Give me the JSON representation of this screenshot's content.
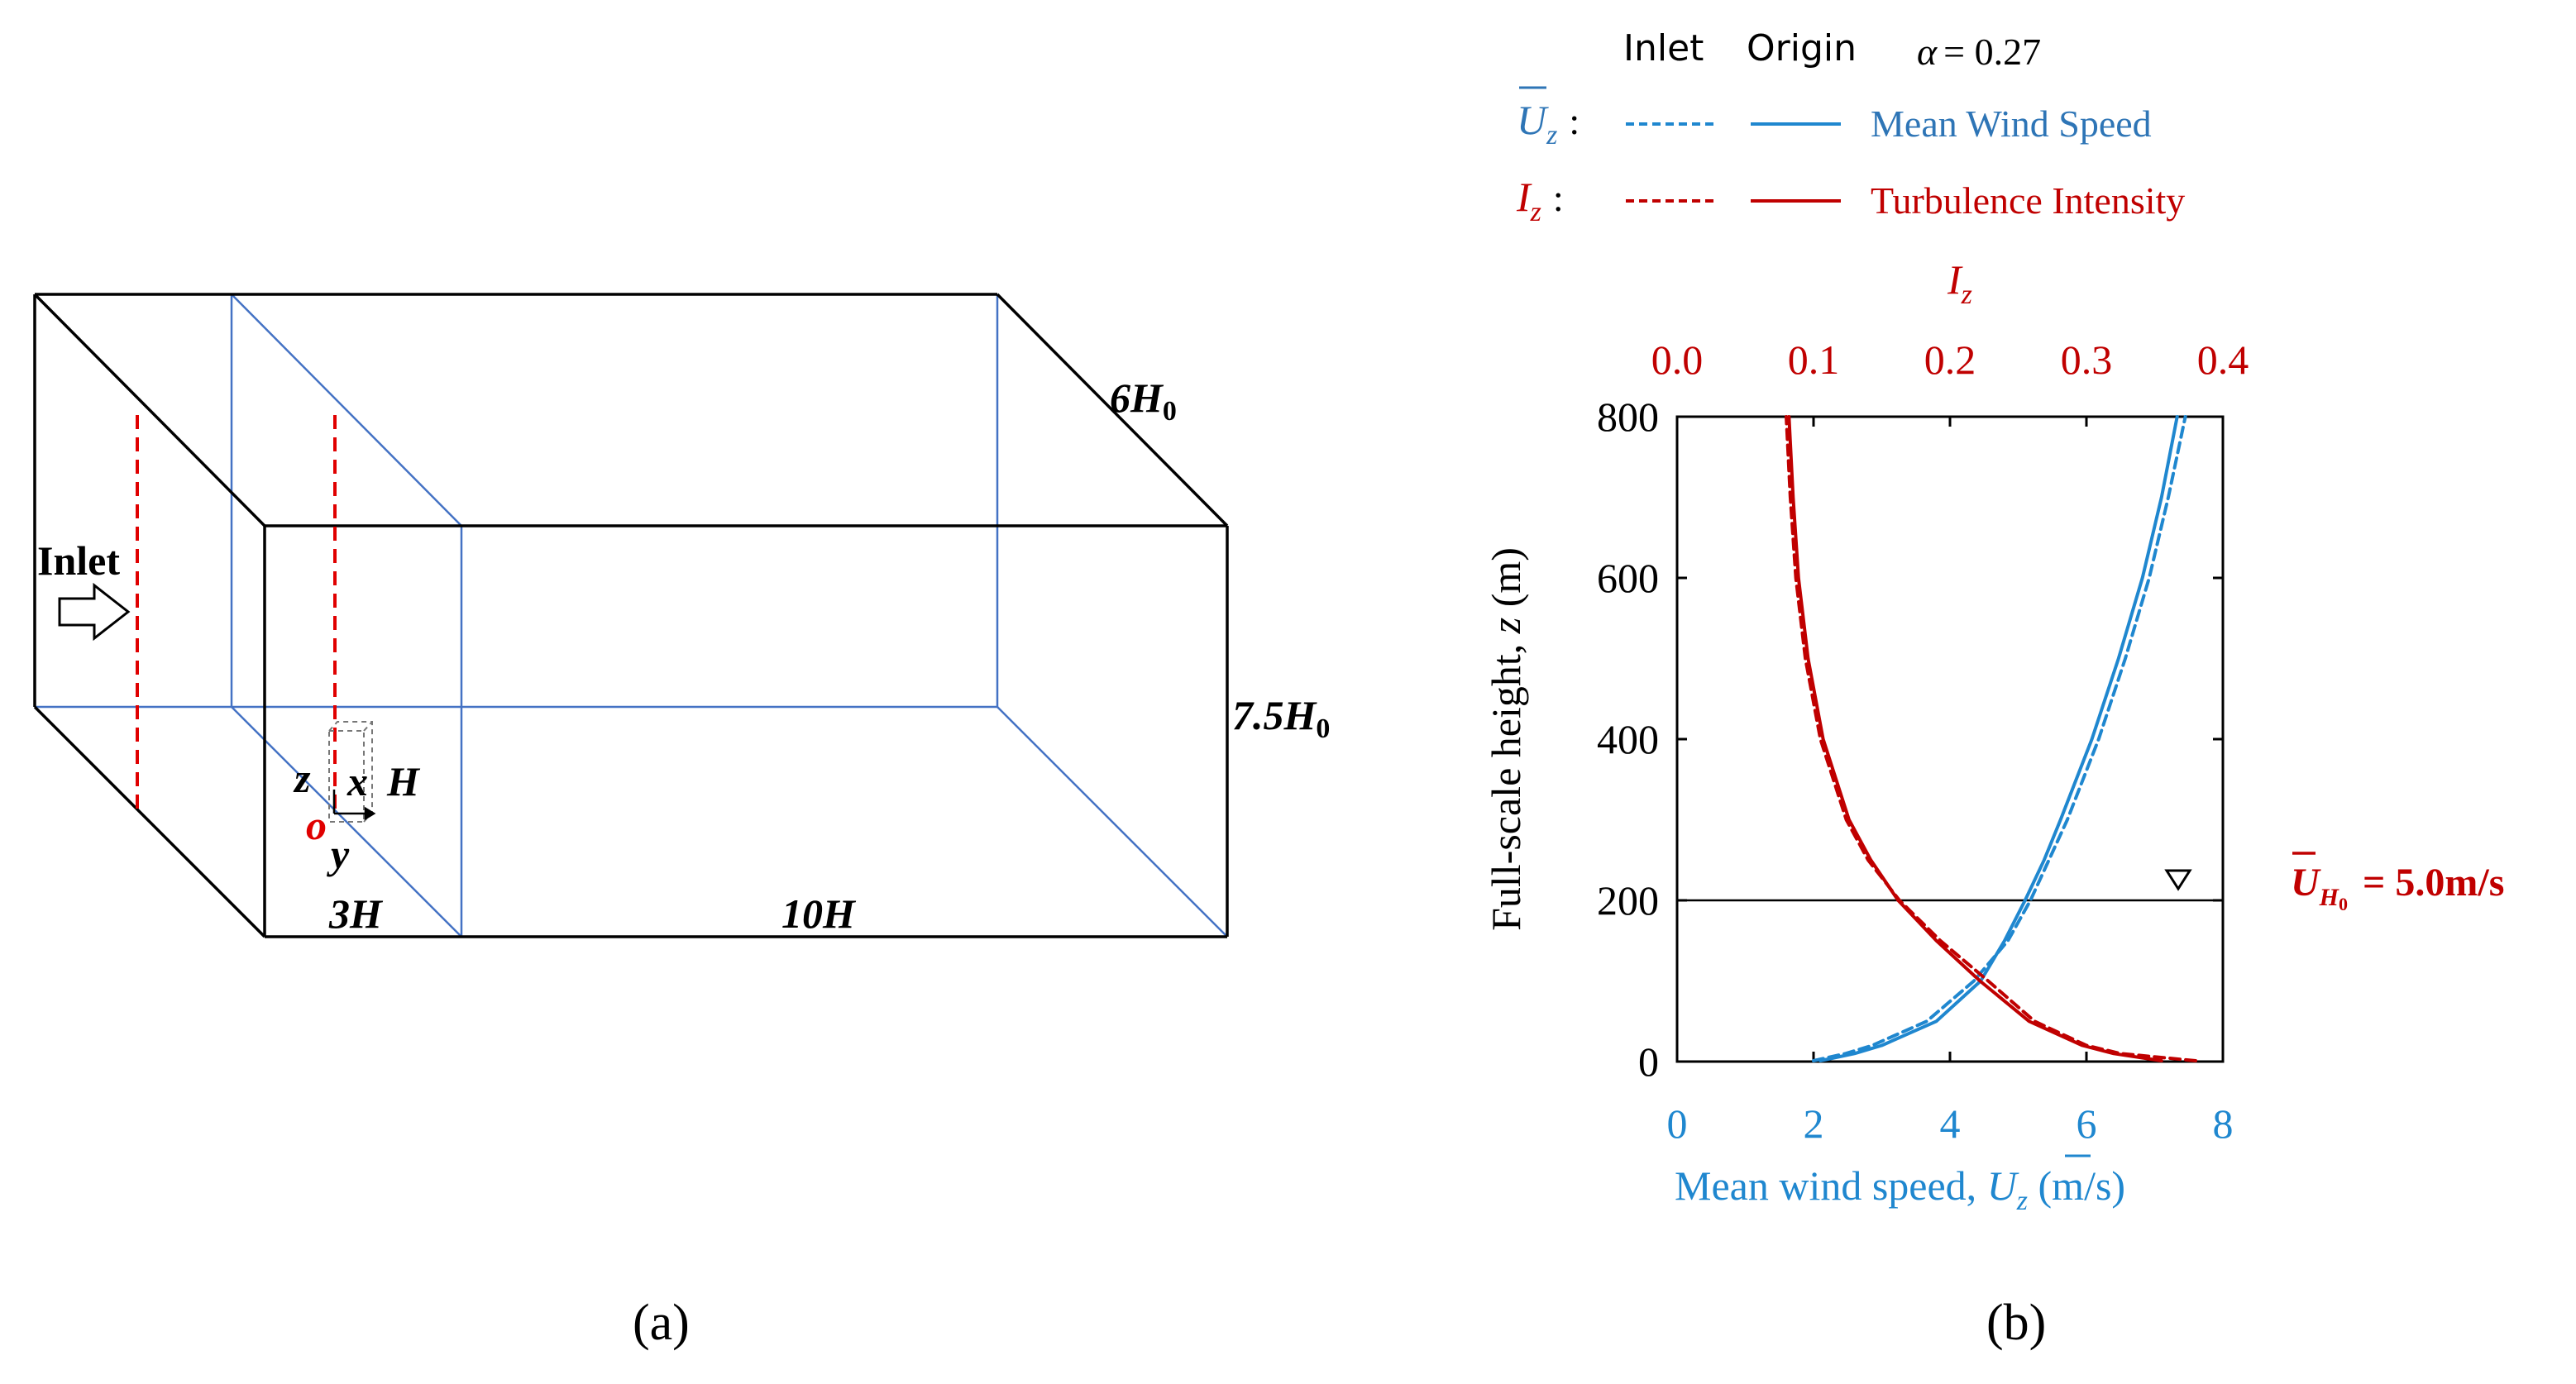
{
  "panel_a": {
    "panel_label": "(a)",
    "inlet_label": "Inlet",
    "dim_width": "6H",
    "dim_width_sub": "0",
    "dim_height": "7.5H",
    "dim_height_sub": "0",
    "dim_upstream": "3H",
    "dim_downstream": "10H",
    "origin_label": "o",
    "axis_x": "x",
    "axis_y": "y",
    "axis_z": "z",
    "building_label": "H",
    "colors": {
      "box": "#000000",
      "plane": "#4472c4",
      "inlet_line": "#e00000",
      "origin": "#e00000"
    }
  },
  "panel_b": {
    "panel_label": "(b)",
    "legend": {
      "header_inlet": "Inlet",
      "header_origin": "Origin",
      "alpha_symbol": "α",
      "alpha_value": "= 0.27",
      "u_symbol": "U",
      "u_sub": "z",
      "u_colon": ":",
      "u_desc": "Mean Wind Speed",
      "i_symbol": "I",
      "i_sub": "z",
      "i_colon": ":",
      "i_desc": "Turbulence Intensity"
    },
    "ref_label_main": "U",
    "ref_label_sub": "H",
    "ref_label_sub2": "0",
    "ref_label_value": "= 5.0m/s",
    "ref_height_marker": "∇",
    "colors": {
      "wind": "#1f87cf",
      "turb": "#c00000",
      "axis": "#000000"
    }
  },
  "chart_data": {
    "type": "line",
    "ylabel_prefix": "Full-scale height, ",
    "ylabel_var": "z",
    "ylabel_unit": " (m)",
    "xlabel_bottom_prefix": "Mean wind speed, ",
    "xlabel_bottom_var": "U",
    "xlabel_bottom_sub": "z",
    "xlabel_bottom_unit": " (m/s)",
    "xlabel_top_var": "I",
    "xlabel_top_sub": "z",
    "ylim": [
      0,
      800
    ],
    "xlim_bottom": [
      0,
      8
    ],
    "xlim_top": [
      0,
      0.4
    ],
    "yticks": [
      "0",
      "200",
      "400",
      "600",
      "800"
    ],
    "xticks_bottom": [
      "0",
      "2",
      "4",
      "6",
      "8"
    ],
    "xticks_top": [
      "0.0",
      "0.1",
      "0.2",
      "0.3",
      "0.4"
    ],
    "ref_height": 200,
    "series": [
      {
        "name": "Mean Wind Speed",
        "variant": "Inlet",
        "style": "dashed",
        "color": "#1f87cf",
        "axis": "bottom",
        "z": [
          1,
          10,
          20,
          50,
          100,
          150,
          200,
          250,
          300,
          400,
          500,
          600,
          700,
          800
        ],
        "x": [
          2.0,
          2.47,
          2.86,
          3.66,
          4.35,
          4.85,
          5.18,
          5.45,
          5.72,
          6.18,
          6.57,
          6.92,
          7.2,
          7.45
        ]
      },
      {
        "name": "Mean Wind Speed",
        "variant": "Origin",
        "style": "solid",
        "color": "#1f87cf",
        "axis": "bottom",
        "z": [
          1,
          10,
          20,
          50,
          100,
          150,
          200,
          250,
          300,
          400,
          500,
          600,
          700,
          800
        ],
        "x": [
          2.1,
          2.6,
          3.0,
          3.8,
          4.45,
          4.8,
          5.1,
          5.38,
          5.62,
          6.08,
          6.47,
          6.82,
          7.1,
          7.33
        ]
      },
      {
        "name": "Turbulence Intensity",
        "variant": "Inlet",
        "style": "dashed",
        "color": "#c00000",
        "axis": "top",
        "z": [
          1,
          10,
          20,
          50,
          100,
          150,
          200,
          250,
          300,
          400,
          500,
          600,
          700,
          800
        ],
        "x": [
          0.38,
          0.325,
          0.3,
          0.262,
          0.228,
          0.193,
          0.163,
          0.14,
          0.124,
          0.105,
          0.094,
          0.087,
          0.083,
          0.08
        ]
      },
      {
        "name": "Turbulence Intensity",
        "variant": "Origin",
        "style": "solid",
        "color": "#c00000",
        "axis": "top",
        "z": [
          1,
          10,
          20,
          50,
          100,
          150,
          200,
          250,
          300,
          400,
          500,
          600,
          700,
          800
        ],
        "x": [
          0.355,
          0.32,
          0.297,
          0.258,
          0.222,
          0.19,
          0.162,
          0.142,
          0.126,
          0.107,
          0.096,
          0.089,
          0.085,
          0.082
        ]
      }
    ]
  }
}
